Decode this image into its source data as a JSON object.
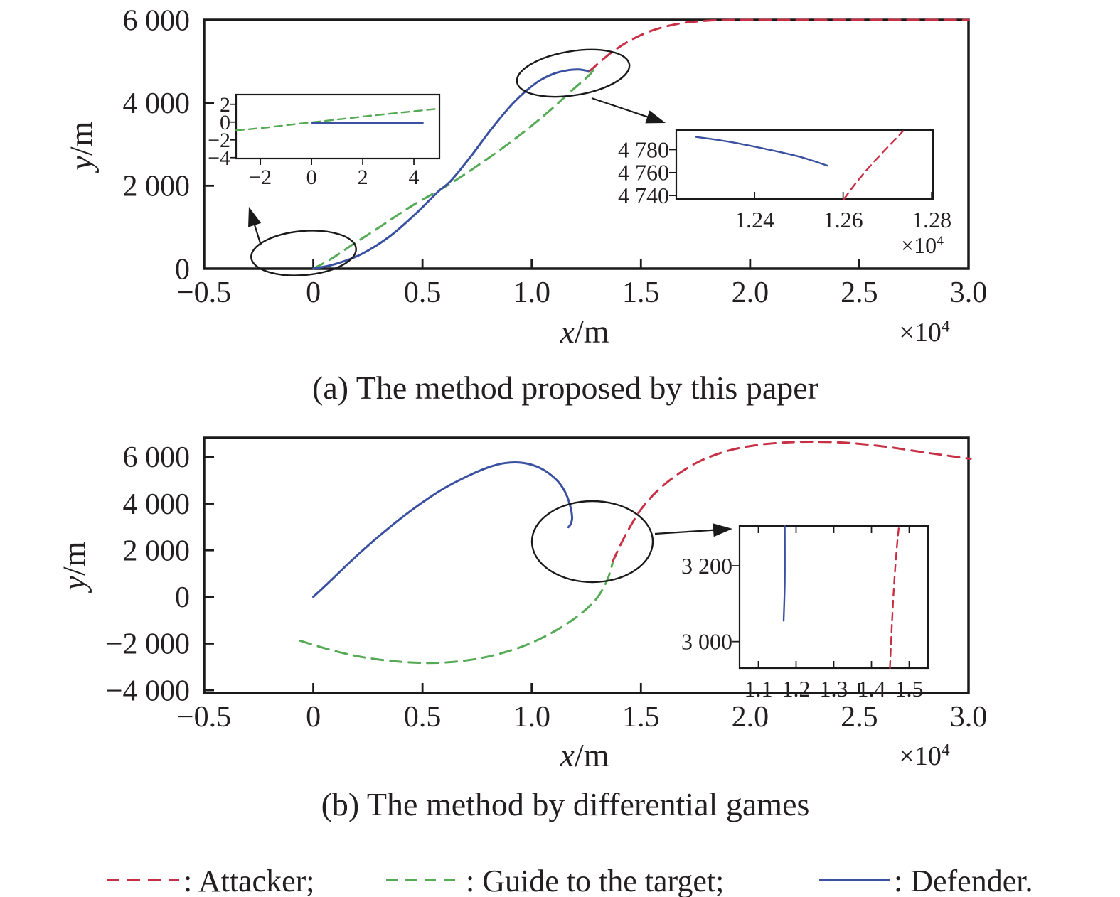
{
  "figure": {
    "background": "#ffffff"
  },
  "colors": {
    "attacker": "#c72f45",
    "guide": "#55aa55",
    "defender": "#3a50a0",
    "axis": "#1a1a1a",
    "annotation": "#1a1a1a"
  },
  "labels": {
    "chart_a": {
      "caption": "(a) The method proposed by this paper",
      "xlabel_var": "x",
      "xlabel_unit": "/m",
      "ylabel_var": "y",
      "ylabel_unit": "/m",
      "multiplier_base": "×10",
      "multiplier_exp": "4"
    },
    "chart_b": {
      "caption": "(b) The method by differential games",
      "xlabel_var": "x",
      "xlabel_unit": "/m",
      "ylabel_var": "y",
      "ylabel_unit": "/m",
      "multiplier_base": "×10",
      "multiplier_exp": "4"
    }
  },
  "legend": {
    "items": [
      {
        "name": "attacker",
        "label": ": Attacker;",
        "style": "dashed"
      },
      {
        "name": "guide",
        "label": ": Guide to the target;",
        "style": "dashed"
      },
      {
        "name": "defender",
        "label": ": Defender.",
        "style": "solid"
      }
    ]
  },
  "chart_data": [
    {
      "id": "a",
      "type": "line",
      "title": "(a) The method proposed by this paper",
      "xlabel": "x/m (×10⁴)",
      "ylabel": "y/m",
      "grid": false,
      "x_axis": {
        "range": [
          -0.5,
          3.0
        ],
        "ticks": [
          {
            "v": -0.5,
            "l": "−0.5"
          },
          {
            "v": 0,
            "l": "0"
          },
          {
            "v": 0.5,
            "l": "0.5"
          },
          {
            "v": 1.0,
            "l": "1.0"
          },
          {
            "v": 1.5,
            "l": "1.5"
          },
          {
            "v": 2.0,
            "l": "2.0"
          },
          {
            "v": 2.5,
            "l": "2.5"
          },
          {
            "v": 3.0,
            "l": "3.0"
          }
        ]
      },
      "y_axis": {
        "range": [
          0,
          6000
        ],
        "ticks": [
          {
            "v": 0,
            "l": "0"
          },
          {
            "v": 2000,
            "l": "2 000"
          },
          {
            "v": 4000,
            "l": "4 000"
          },
          {
            "v": 6000,
            "l": "6 000"
          }
        ]
      },
      "series": [
        {
          "name": "attacker",
          "style": "dashed",
          "points": [
            [
              1.26,
              4750
            ],
            [
              1.278,
              4825
            ],
            [
              1.32,
              5020
            ],
            [
              1.38,
              5270
            ],
            [
              1.46,
              5530
            ],
            [
              1.56,
              5760
            ],
            [
              1.68,
              5915
            ],
            [
              1.8,
              5980
            ],
            [
              1.92,
              5998
            ],
            [
              2.05,
              6000
            ],
            [
              2.3,
              6000
            ],
            [
              2.65,
              6000
            ],
            [
              3.0,
              6000
            ]
          ]
        },
        {
          "name": "guide",
          "style": "dashed",
          "points": [
            [
              0,
              0
            ],
            [
              0.08,
              230
            ],
            [
              0.18,
              580
            ],
            [
              0.3,
              990
            ],
            [
              0.45,
              1510
            ],
            [
              0.63,
              2060
            ],
            [
              0.8,
              2660
            ],
            [
              0.95,
              3240
            ],
            [
              1.08,
              3800
            ],
            [
              1.18,
              4280
            ],
            [
              1.26,
              4650
            ],
            [
              1.285,
              4810
            ]
          ]
        },
        {
          "name": "defender",
          "style": "solid",
          "points": [
            [
              0,
              0
            ],
            [
              0.1,
              110
            ],
            [
              0.22,
              350
            ],
            [
              0.35,
              780
            ],
            [
              0.47,
              1330
            ],
            [
              0.57,
              1850
            ],
            [
              0.63,
              2120
            ],
            [
              0.72,
              2700
            ],
            [
              0.82,
              3400
            ],
            [
              0.92,
              4020
            ],
            [
              1.02,
              4480
            ],
            [
              1.1,
              4700
            ],
            [
              1.17,
              4790
            ],
            [
              1.215,
              4805
            ],
            [
              1.245,
              4782
            ],
            [
              1.258,
              4768
            ]
          ]
        }
      ],
      "insets": [
        {
          "id": "a1",
          "x_axis": {
            "range": [
              -2.95,
              5.0
            ],
            "ticks": [
              {
                "v": -2,
                "l": "−2"
              },
              {
                "v": 0,
                "l": "0"
              },
              {
                "v": 2,
                "l": "2"
              },
              {
                "v": 4,
                "l": "4"
              }
            ]
          },
          "y_axis": {
            "range": [
              -4.1,
              3.1
            ],
            "ticks": [
              {
                "v": 2,
                "l": "2"
              },
              {
                "v": 0,
                "l": "0"
              },
              {
                "v": -2,
                "l": "−2"
              },
              {
                "v": -4,
                "l": "−4"
              }
            ]
          },
          "series": [
            {
              "name": "guide",
              "style": "dashed",
              "points": [
                [
                  -2.95,
                  -0.93
                ],
                [
                  -1.8,
                  -0.62
                ],
                [
                  -0.5,
                  -0.18
                ],
                [
                  0.8,
                  0.22
                ],
                [
                  2.2,
                  0.68
                ],
                [
                  3.6,
                  1.1
                ],
                [
                  5.0,
                  1.52
                ]
              ]
            },
            {
              "name": "defender",
              "style": "solid",
              "points": [
                [
                  0.02,
                  -0.08
                ],
                [
                  4.35,
                  -0.1
                ]
              ]
            }
          ]
        },
        {
          "id": "a2",
          "multiplier": {
            "base": "×10",
            "exp": "4"
          },
          "x_axis": {
            "range": [
              1.2223,
              1.2803
            ],
            "ticks": [
              {
                "v": 1.24,
                "l": "1.24"
              },
              {
                "v": 1.26,
                "l": "1.26"
              },
              {
                "v": 1.28,
                "l": "1.28"
              }
            ]
          },
          "y_axis": {
            "range": [
              4737,
              4797
            ],
            "ticks": [
              {
                "v": 4740,
                "l": "4 740"
              },
              {
                "v": 4760,
                "l": "4 760"
              },
              {
                "v": 4780,
                "l": "4 780"
              }
            ]
          },
          "series": [
            {
              "name": "defender",
              "style": "solid",
              "points": [
                [
                  1.2268,
                  4791
                ],
                [
                  1.234,
                  4787
                ],
                [
                  1.242,
                  4781
                ],
                [
                  1.25,
                  4774
                ],
                [
                  1.2565,
                  4766
                ]
              ]
            },
            {
              "name": "attacker",
              "style": "dashed",
              "points": [
                [
                  1.2602,
                  4737
                ],
                [
                  1.2625,
                  4749
                ],
                [
                  1.2655,
                  4763
                ],
                [
                  1.2688,
                  4777
                ],
                [
                  1.2718,
                  4789
                ],
                [
                  1.2735,
                  4796
                ]
              ]
            }
          ]
        }
      ]
    },
    {
      "id": "b",
      "type": "line",
      "title": "(b) The method by differential games",
      "xlabel": "x/m (×10⁴)",
      "ylabel": "y/m",
      "grid": false,
      "x_axis": {
        "range": [
          -0.5,
          3.0
        ],
        "ticks": [
          {
            "v": -0.5,
            "l": "−0.5"
          },
          {
            "v": 0,
            "l": "0"
          },
          {
            "v": 0.5,
            "l": "0.5"
          },
          {
            "v": 1.0,
            "l": "1.0"
          },
          {
            "v": 1.5,
            "l": "1.5"
          },
          {
            "v": 2.0,
            "l": "2.0"
          },
          {
            "v": 2.5,
            "l": "2.5"
          },
          {
            "v": 3.0,
            "l": "3.0"
          }
        ]
      },
      "y_axis": {
        "range": [
          -4120,
          6820
        ],
        "ticks": [
          {
            "v": -4000,
            "l": "−4 000"
          },
          {
            "v": -2000,
            "l": "−2 000"
          },
          {
            "v": 0,
            "l": "0"
          },
          {
            "v": 2000,
            "l": "2 000"
          },
          {
            "v": 4000,
            "l": "4 000"
          },
          {
            "v": 6000,
            "l": "6 000"
          }
        ]
      },
      "series": [
        {
          "name": "attacker",
          "style": "dashed",
          "points": [
            [
              1.37,
              1500
            ],
            [
              1.41,
              2300
            ],
            [
              1.45,
              3000
            ],
            [
              1.5,
              3750
            ],
            [
              1.57,
              4500
            ],
            [
              1.66,
              5200
            ],
            [
              1.77,
              5820
            ],
            [
              1.9,
              6270
            ],
            [
              2.04,
              6520
            ],
            [
              2.18,
              6630
            ],
            [
              2.32,
              6650
            ],
            [
              2.47,
              6590
            ],
            [
              2.62,
              6440
            ],
            [
              2.78,
              6220
            ],
            [
              2.9,
              6060
            ],
            [
              3.01,
              5920
            ]
          ]
        },
        {
          "name": "guide",
          "style": "dashed",
          "points": [
            [
              -0.06,
              -1880
            ],
            [
              0.06,
              -2220
            ],
            [
              0.2,
              -2540
            ],
            [
              0.35,
              -2740
            ],
            [
              0.5,
              -2830
            ],
            [
              0.65,
              -2780
            ],
            [
              0.8,
              -2560
            ],
            [
              0.95,
              -2150
            ],
            [
              1.08,
              -1600
            ],
            [
              1.2,
              -900
            ],
            [
              1.29,
              -150
            ],
            [
              1.34,
              600
            ],
            [
              1.36,
              1100
            ],
            [
              1.37,
              1450
            ]
          ]
        },
        {
          "name": "defender",
          "style": "solid",
          "points": [
            [
              0,
              0
            ],
            [
              0.08,
              700
            ],
            [
              0.18,
              1600
            ],
            [
              0.3,
              2600
            ],
            [
              0.44,
              3650
            ],
            [
              0.58,
              4550
            ],
            [
              0.7,
              5150
            ],
            [
              0.8,
              5550
            ],
            [
              0.88,
              5740
            ],
            [
              0.96,
              5745
            ],
            [
              1.04,
              5520
            ],
            [
              1.11,
              5050
            ],
            [
              1.15,
              4550
            ],
            [
              1.175,
              3950
            ],
            [
              1.185,
              3400
            ],
            [
              1.178,
              3120
            ],
            [
              1.168,
              2990
            ]
          ]
        }
      ],
      "insets": [
        {
          "id": "b1",
          "x_axis": {
            "range": [
              1.05,
              1.55
            ],
            "ticks": [
              {
                "v": 1.1,
                "l": "1.1"
              },
              {
                "v": 1.2,
                "l": "1.2"
              },
              {
                "v": 1.3,
                "l": "1.3"
              },
              {
                "v": 1.4,
                "l": "1.4"
              },
              {
                "v": 1.5,
                "l": "1.5"
              }
            ]
          },
          "y_axis": {
            "range": [
              2930,
              3305
            ],
            "ticks": [
              {
                "v": 3000,
                "l": "3 000"
              },
              {
                "v": 3200,
                "l": "3 200"
              }
            ]
          },
          "series": [
            {
              "name": "defender",
              "style": "solid",
              "points": [
                [
                  1.17,
                  3305
                ],
                [
                  1.17,
                  3160
                ],
                [
                  1.167,
                  3055
                ]
              ]
            },
            {
              "name": "attacker",
              "style": "dashed",
              "points": [
                [
                  1.449,
                  2930
                ],
                [
                  1.454,
                  3040
                ],
                [
                  1.46,
                  3150
                ],
                [
                  1.467,
                  3245
                ],
                [
                  1.473,
                  3305
                ]
              ]
            }
          ]
        }
      ]
    }
  ]
}
